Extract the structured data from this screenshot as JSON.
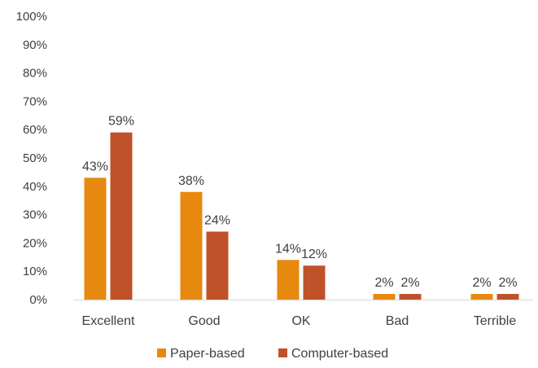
{
  "chart_data": {
    "type": "bar",
    "title": "",
    "xlabel": "",
    "ylabel": "",
    "ylim": [
      0,
      100
    ],
    "y_ticks": [
      "0%",
      "10%",
      "20%",
      "30%",
      "40%",
      "50%",
      "60%",
      "70%",
      "80%",
      "90%",
      "100%"
    ],
    "grid": false,
    "legend_position": "bottom",
    "categories": [
      "Excellent",
      "Good",
      "OK",
      "Bad",
      "Terrible"
    ],
    "series": [
      {
        "name": "Paper-based",
        "color": "#E8890F",
        "values": [
          43,
          38,
          14,
          2,
          2
        ],
        "labels": [
          "43%",
          "38%",
          "14%",
          "2%",
          "2%"
        ]
      },
      {
        "name": "Computer-based",
        "color": "#C0522A",
        "values": [
          59,
          24,
          12,
          2,
          2
        ],
        "labels": [
          "59%",
          "24%",
          "12%",
          "2%",
          "2%"
        ]
      }
    ]
  }
}
